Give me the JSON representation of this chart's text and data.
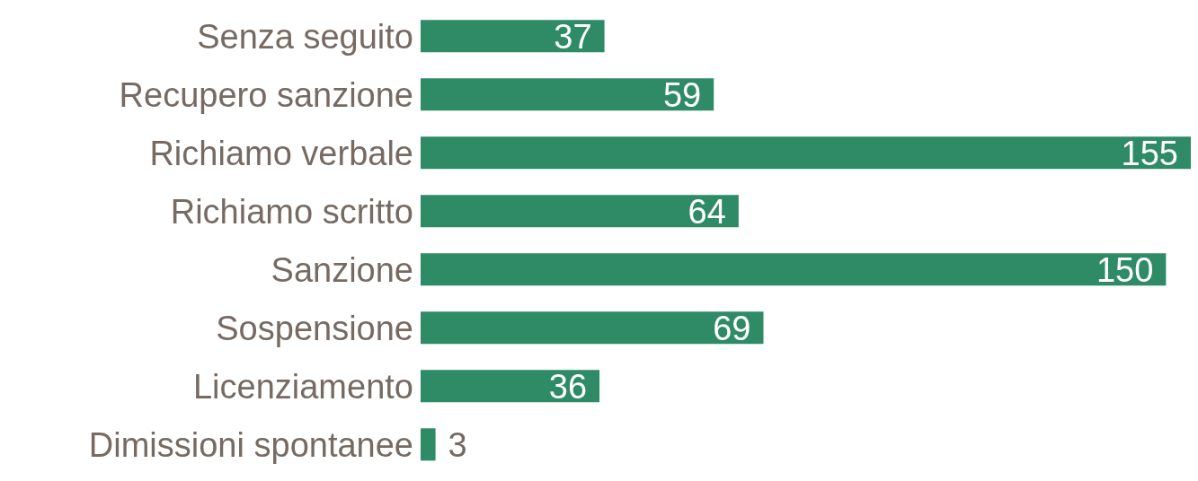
{
  "chart_data": {
    "type": "bar",
    "orientation": "horizontal",
    "categories": [
      "Senza seguito",
      "Recupero sanzione",
      "Richiamo verbale",
      "Richiamo scritto",
      "Sanzione",
      "Sospensione",
      "Licenziamento",
      "Dimissioni spontanee"
    ],
    "values": [
      37,
      59,
      155,
      64,
      150,
      69,
      36,
      3
    ],
    "color": "#2e8b66",
    "data_labels": true,
    "grid": false,
    "legend": false
  }
}
